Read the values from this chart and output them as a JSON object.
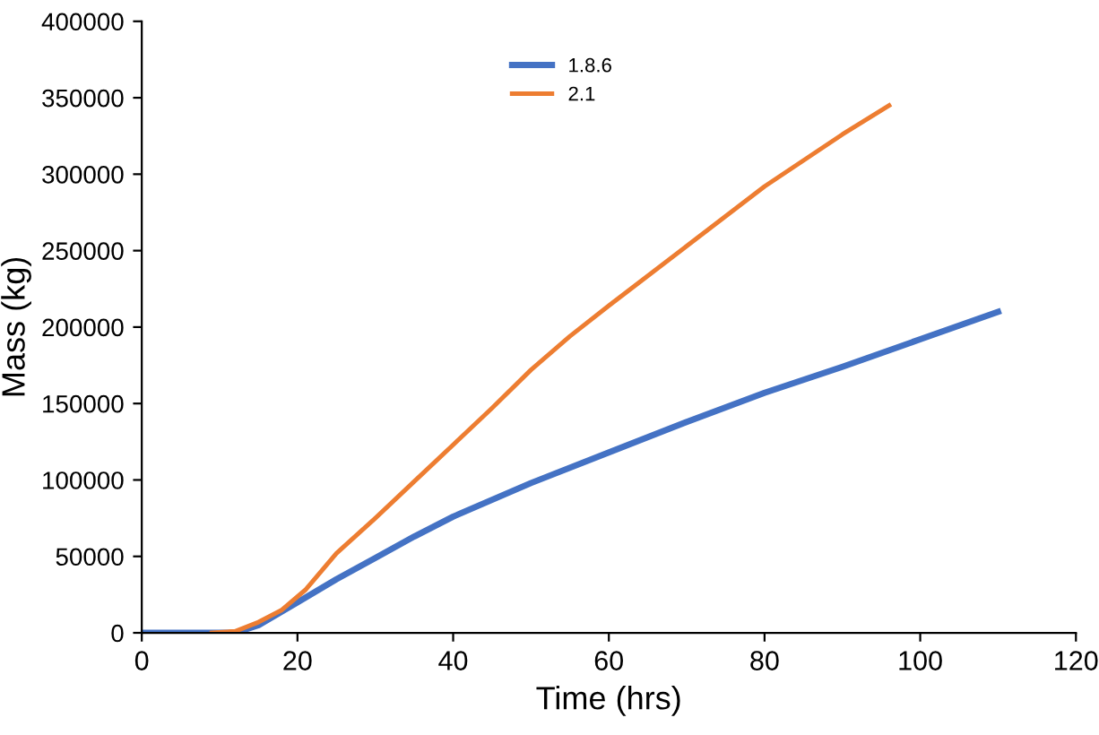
{
  "chart_data": {
    "type": "line",
    "xlabel": "Time (hrs)",
    "ylabel": "Mass (kg)",
    "xlim": [
      0,
      120
    ],
    "xticks": [
      0,
      20,
      40,
      60,
      80,
      100,
      120
    ],
    "ylim": [
      0,
      400000
    ],
    "yticks": [
      0,
      50000,
      100000,
      150000,
      200000,
      250000,
      300000,
      350000,
      400000
    ],
    "grid": false,
    "legend": "top",
    "marker": "none",
    "line_style": "solid",
    "series": [
      {
        "name": "1.8.6",
        "color": "#4472c4",
        "x": [
          0,
          12,
          15,
          20,
          25,
          30,
          35,
          40,
          50,
          60,
          70,
          80,
          90,
          100,
          110
        ],
        "values": [
          0,
          0,
          5000,
          20000,
          35000,
          49000,
          63000,
          76000,
          98000,
          118000,
          138000,
          157000,
          174000,
          192000,
          210000
        ]
      },
      {
        "name": "2.1",
        "color": "#ed7d31",
        "x": [
          9,
          12,
          15,
          18,
          21,
          25,
          30,
          35,
          40,
          45,
          50,
          55,
          60,
          70,
          80,
          90,
          96
        ],
        "values": [
          0,
          1000,
          7000,
          15000,
          28000,
          52000,
          75000,
          99000,
          123000,
          147000,
          172000,
          194000,
          214000,
          253000,
          292000,
          326000,
          345000
        ]
      }
    ]
  }
}
